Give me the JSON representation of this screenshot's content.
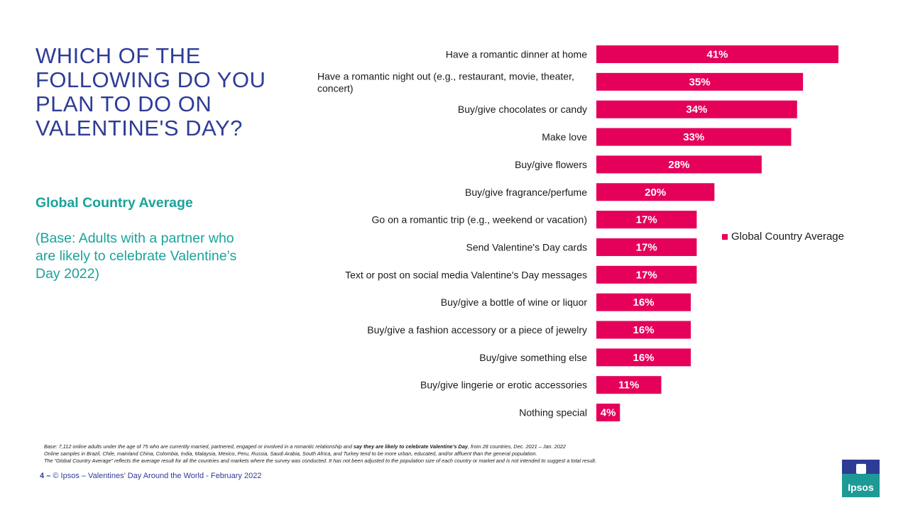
{
  "slide": {
    "title": "WHICH OF THE FOLLOWING DO YOU PLAN TO DO ON VALENTINE'S DAY?",
    "subtitle": "Global Country Average",
    "base_note": "(Base: Adults with a partner who are likely to celebrate Valentine’s Day 2022)"
  },
  "legend": {
    "label": "Global Country Average",
    "color": "#e5005a"
  },
  "footnote": {
    "line1_part1": "Base: 7,112 online adults under the age of 75 who are currently married, partnered, engaged or involved in a romantic relationship and ",
    "line1_bold": "say they are likely to celebrate Valentine’s Day",
    "line1_part2": ", from 28 countries, Dec. 2021 – Jan. 2022",
    "line2": "Online samples in Brazil, Chile, mainland China, Colombia, India, Malaysia, Mexico, Peru, Russia, Saudi Arabia, South Africa, and Turkey tend to be more urban, educated, and/or affluent than the general population.",
    "line3": "The “Global Country Average” reflects the average result for all the countries and markets where the survey was conducted. It has not been adjusted to the population size of each country or market and is not intended to suggest a total result."
  },
  "footer": {
    "page": "4",
    "dash": "–",
    "text": "© Ipsos – Valentines’ Day Around the World - February 2022"
  },
  "logo": {
    "text": "Ipsos"
  },
  "chart_data": {
    "type": "bar",
    "orientation": "horizontal",
    "series_name": "Global Country Average",
    "color": "#e5005a",
    "categories": [
      [
        "Have a romantic dinner at home"
      ],
      [
        "Have a romantic night out (e.g., restaurant, movie, theater,",
        "concert)"
      ],
      [
        "Buy/give chocolates or candy"
      ],
      [
        "Make love"
      ],
      [
        "Buy/give flowers"
      ],
      [
        "Buy/give fragrance/perfume"
      ],
      [
        "Go on a romantic trip (e.g., weekend or vacation)"
      ],
      [
        "Send Valentine's Day cards"
      ],
      [
        "Text or post on social media Valentine's Day messages"
      ],
      [
        "Buy/give a bottle of wine or liquor"
      ],
      [
        "Buy/give a fashion accessory or a piece of jewelry"
      ],
      [
        "Buy/give something else"
      ],
      [
        "Buy/give lingerie or erotic accessories"
      ],
      [
        "Nothing special"
      ]
    ],
    "values": [
      41,
      35,
      34,
      33,
      28,
      20,
      17,
      17,
      17,
      16,
      16,
      16,
      11,
      4
    ],
    "value_labels": [
      "41%",
      "35%",
      "34%",
      "33%",
      "28%",
      "20%",
      "17%",
      "17%",
      "17%",
      "16%",
      "16%",
      "16%",
      "11%",
      "4%"
    ],
    "xlim": [
      0,
      41
    ],
    "grid": false,
    "legend_position": "right"
  }
}
